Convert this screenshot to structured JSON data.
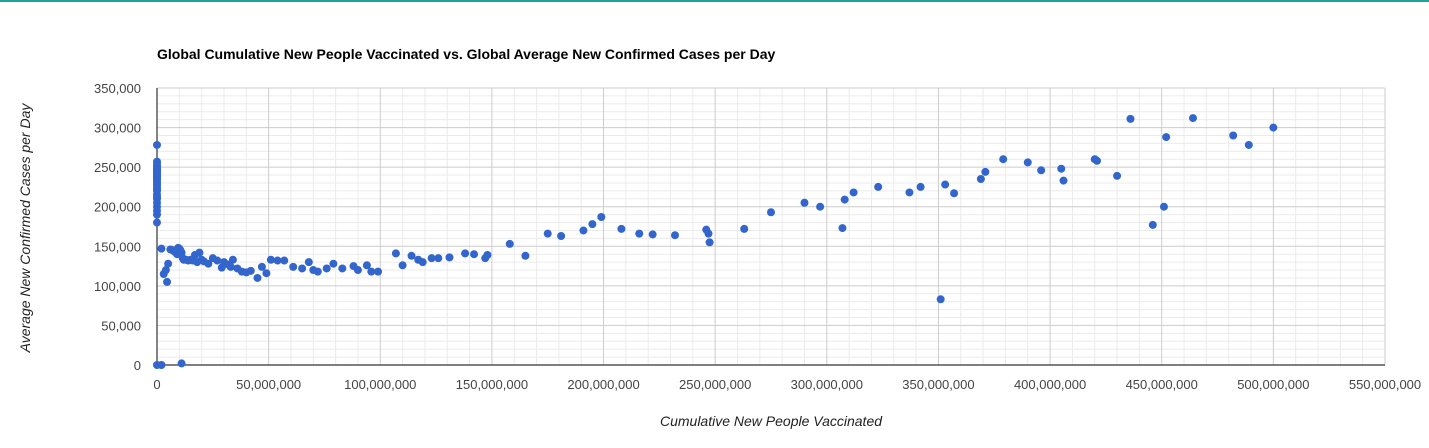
{
  "colors": {
    "accent_rule": "#1fa39a",
    "point": "#3366cc",
    "grid_major": "#cccccc",
    "grid_minor": "#ebebeb",
    "axis": "#333333"
  },
  "chart_data": {
    "type": "scatter",
    "title": "Global Cumulative New People Vaccinated vs. Global Average New Confirmed Cases per Day",
    "xlabel": "Cumulative New People Vaccinated",
    "ylabel": "Average New Confirmed Cases per Day",
    "xlim": [
      0,
      550000000
    ],
    "ylim": [
      0,
      350000
    ],
    "x_ticks": [
      0,
      50000000,
      100000000,
      150000000,
      200000000,
      250000000,
      300000000,
      350000000,
      400000000,
      450000000,
      500000000,
      550000000
    ],
    "x_tick_labels": [
      "0",
      "50,000,000",
      "100,000,000",
      "150,000,000",
      "200,000,000",
      "250,000,000",
      "300,000,000",
      "350,000,000",
      "400,000,000",
      "450,000,000",
      "500,000,000",
      "550,000,000"
    ],
    "y_ticks": [
      0,
      50000,
      100000,
      150000,
      200000,
      250000,
      300000,
      350000
    ],
    "y_tick_labels": [
      "0",
      "50,000",
      "100,000",
      "150,000",
      "200,000",
      "250,000",
      "300,000",
      "350,000"
    ],
    "grid": true,
    "legend": "none",
    "x": [
      0,
      0,
      0,
      0,
      0,
      0,
      0,
      0,
      0,
      0,
      0,
      0,
      0,
      0,
      0,
      0,
      0,
      0,
      0,
      0,
      0,
      0,
      0,
      0,
      0,
      0,
      0,
      0,
      0,
      0,
      0,
      0,
      2000000,
      11000000,
      2000000,
      3000000,
      4000000,
      4500000,
      5000000,
      6000000,
      7000000,
      8000000,
      8500000,
      9000000,
      9500000,
      10000000,
      10500000,
      11000000,
      11500000,
      12000000,
      13000000,
      14000000,
      15000000,
      16000000,
      17000000,
      18000000,
      19000000,
      20000000,
      21000000,
      23000000,
      25000000,
      27000000,
      29000000,
      30000000,
      32000000,
      33000000,
      34000000,
      36000000,
      38000000,
      40000000,
      42000000,
      45000000,
      47000000,
      49000000,
      51000000,
      54000000,
      57000000,
      61000000,
      65000000,
      68000000,
      70000000,
      72000000,
      76000000,
      79000000,
      83000000,
      88000000,
      90000000,
      94000000,
      96000000,
      99000000,
      107000000,
      110000000,
      114000000,
      117000000,
      119000000,
      123000000,
      126000000,
      131000000,
      138000000,
      142000000,
      147000000,
      148000000,
      158000000,
      165000000,
      175000000,
      181000000,
      191000000,
      195000000,
      199000000,
      208000000,
      216000000,
      222000000,
      232000000,
      246000000,
      247000000,
      247500000,
      263000000,
      275000000,
      290000000,
      297000000,
      307000000,
      308000000,
      312000000,
      323000000,
      337000000,
      342000000,
      351000000,
      353000000,
      357000000,
      369000000,
      371000000,
      379000000,
      390000000,
      396000000,
      405000000,
      406000000,
      420000000,
      421000000,
      430000000,
      436000000,
      446000000,
      451000000,
      452000000,
      464000000,
      482000000,
      489000000,
      500000000
    ],
    "y": [
      0,
      180000,
      190000,
      195000,
      200000,
      205000,
      210000,
      212000,
      215000,
      220000,
      222000,
      225000,
      228000,
      230000,
      233000,
      235000,
      237000,
      238000,
      240000,
      241000,
      242000,
      243000,
      244000,
      245000,
      246000,
      247000,
      248000,
      250000,
      252000,
      255000,
      257000,
      278000,
      0,
      2000,
      147000,
      115000,
      120000,
      105000,
      128000,
      146000,
      145000,
      143000,
      142000,
      140000,
      148000,
      147000,
      145000,
      142000,
      135000,
      133000,
      133000,
      132000,
      133000,
      132000,
      139000,
      130000,
      142000,
      133000,
      131000,
      128000,
      135000,
      132000,
      123000,
      130000,
      127000,
      124000,
      133000,
      122000,
      118000,
      117000,
      119000,
      110000,
      124000,
      116000,
      133000,
      132000,
      132000,
      124000,
      122000,
      130000,
      120000,
      118000,
      122000,
      128000,
      122000,
      125000,
      120000,
      126000,
      118000,
      118000,
      141000,
      126000,
      138000,
      133000,
      130000,
      135000,
      135000,
      136000,
      141000,
      140000,
      135000,
      139000,
      153000,
      138000,
      166000,
      163000,
      170000,
      178000,
      187000,
      172000,
      166000,
      165000,
      164000,
      171000,
      166000,
      155000,
      172000,
      193000,
      205000,
      200000,
      173000,
      209000,
      218000,
      225000,
      218000,
      225000,
      83000,
      228000,
      217000,
      235000,
      244000,
      260000,
      256000,
      246000,
      248000,
      233000,
      260000,
      258000,
      239000,
      311000,
      177000,
      200000,
      288000,
      312000,
      290000,
      278000,
      300000
    ]
  }
}
